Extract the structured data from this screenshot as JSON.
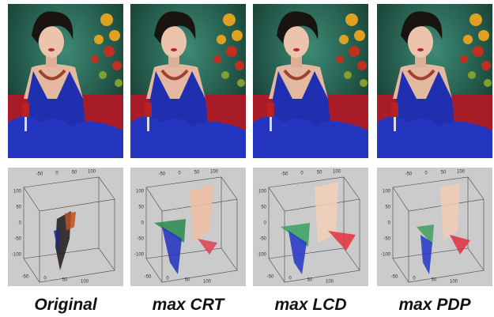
{
  "panels": [
    {
      "label": "Original",
      "top_ticks": [
        "-50",
        "0",
        "50",
        "100"
      ],
      "left_ticks": [
        "100",
        "50",
        "0",
        "-50",
        "-100"
      ],
      "bottom_ticks": [
        "-50",
        "0",
        "50",
        "100"
      ]
    },
    {
      "label": "max CRT",
      "top_ticks": [
        "-50",
        "0",
        "50",
        "100"
      ],
      "left_ticks": [
        "100",
        "50",
        "0",
        "-50",
        "-100"
      ],
      "bottom_ticks": [
        "-50",
        "0",
        "50",
        "100"
      ]
    },
    {
      "label": "max LCD",
      "top_ticks": [
        "-50",
        "0",
        "50",
        "100"
      ],
      "left_ticks": [
        "100",
        "50",
        "0",
        "-50",
        "-100"
      ],
      "bottom_ticks": [
        "-50",
        "0",
        "50",
        "100"
      ]
    },
    {
      "label": "max PDP",
      "top_ticks": [
        "-50",
        "0",
        "50",
        "100"
      ],
      "left_ticks": [
        "100",
        "50",
        "0",
        "-50",
        "-100"
      ],
      "bottom_ticks": [
        "-50",
        "0",
        "50",
        "100"
      ]
    }
  ]
}
